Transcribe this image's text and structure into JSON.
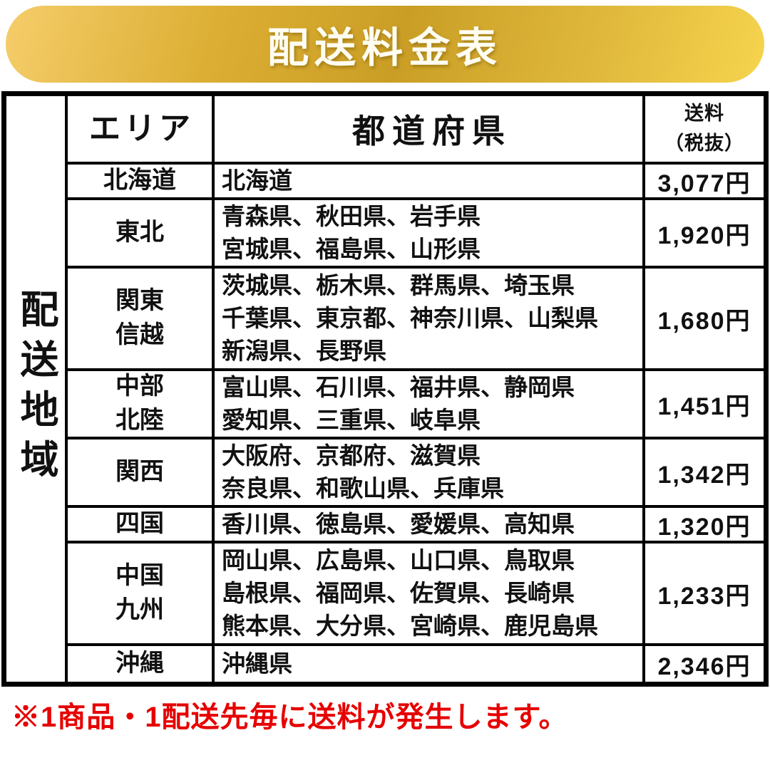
{
  "banner": {
    "title": "配送料金表",
    "colors": {
      "gold_light": "#f5cd6a",
      "gold_dark": "#ca9e25",
      "title_text": "#fffdf2"
    }
  },
  "table": {
    "region_label": "配送地域",
    "headers": {
      "area": "エリア",
      "prefectures": "都道府県",
      "fee_line1": "送料",
      "fee_line2": "（税抜）"
    },
    "rows": [
      {
        "area": [
          "北海道"
        ],
        "prefectures": [
          "北海道"
        ],
        "fee": "3,077円"
      },
      {
        "area": [
          "東北"
        ],
        "prefectures": [
          "青森県、秋田県、岩手県",
          "宮城県、福島県、山形県"
        ],
        "fee": "1,920円"
      },
      {
        "area": [
          "関東",
          "信越"
        ],
        "prefectures": [
          "茨城県、栃木県、群馬県、埼玉県",
          "千葉県、東京都、神奈川県、山梨県",
          "新潟県、長野県"
        ],
        "fee": "1,680円"
      },
      {
        "area": [
          "中部",
          "北陸"
        ],
        "prefectures": [
          "富山県、石川県、福井県、静岡県",
          "愛知県、三重県、岐阜県"
        ],
        "fee": "1,451円"
      },
      {
        "area": [
          "関西"
        ],
        "prefectures": [
          "大阪府、京都府、滋賀県",
          "奈良県、和歌山県、兵庫県"
        ],
        "fee": "1,342円"
      },
      {
        "area": [
          "四国"
        ],
        "prefectures": [
          "香川県、徳島県、愛媛県、高知県"
        ],
        "fee": "1,320円"
      },
      {
        "area": [
          "中国",
          "九州"
        ],
        "prefectures": [
          "岡山県、広島県、山口県、鳥取県",
          "島根県、福岡県、佐賀県、長崎県",
          "熊本県、大分県、宮崎県、鹿児島県"
        ],
        "fee": "1,233円"
      },
      {
        "area": [
          "沖縄"
        ],
        "prefectures": [
          "沖縄県"
        ],
        "fee": "2,346円"
      }
    ],
    "border_color": "#000000"
  },
  "footer": {
    "note": "※1商品・1配送先毎に送料が発生します。",
    "color": "#e60000"
  }
}
